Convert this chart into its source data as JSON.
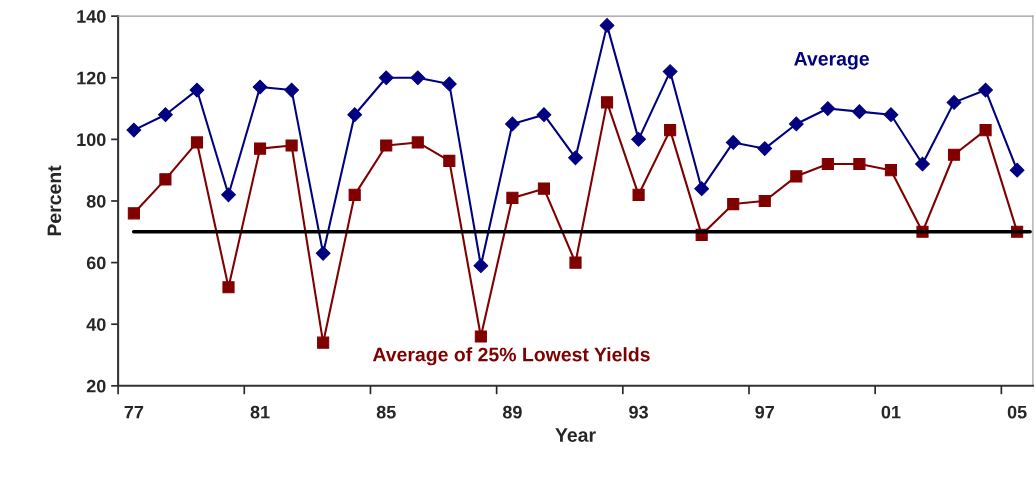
{
  "chart_data": {
    "type": "line",
    "xlabel": "Year",
    "ylabel": "Percent",
    "x": [
      1977,
      1978,
      1979,
      1980,
      1981,
      1982,
      1983,
      1984,
      1985,
      1986,
      1987,
      1988,
      1989,
      1990,
      1991,
      1992,
      1993,
      1994,
      1995,
      1996,
      1997,
      1998,
      1999,
      2000,
      2001,
      2002,
      2003,
      2004,
      2005
    ],
    "series": [
      {
        "name": "Average",
        "color": "#000080",
        "marker": "diamond",
        "values": [
          103,
          108,
          116,
          82,
          117,
          116,
          63,
          108,
          120,
          120,
          118,
          59,
          105,
          108,
          94,
          137,
          100,
          122,
          84,
          99,
          97,
          105,
          110,
          109,
          108,
          92,
          112,
          116,
          90
        ]
      },
      {
        "name": "Average of 25% Lowest Yields",
        "color": "#800000",
        "marker": "square",
        "values": [
          76,
          87,
          99,
          52,
          97,
          98,
          34,
          82,
          98,
          99,
          93,
          36,
          81,
          84,
          60,
          112,
          82,
          103,
          69,
          79,
          80,
          88,
          92,
          92,
          90,
          70,
          95,
          103,
          70
        ]
      }
    ],
    "ref_lines": [
      {
        "axis": "y",
        "value": 70,
        "color": "#000000"
      }
    ],
    "xlim": [
      1976.5,
      2005.5
    ],
    "xticks": [
      {
        "value": 1976.5,
        "label": null
      },
      {
        "value": 1977,
        "label": "77"
      },
      {
        "value": 1980.5,
        "label": null
      },
      {
        "value": 1981,
        "label": "81"
      },
      {
        "value": 1984.5,
        "label": null
      },
      {
        "value": 1985,
        "label": "85"
      },
      {
        "value": 1988.5,
        "label": null
      },
      {
        "value": 1989,
        "label": "89"
      },
      {
        "value": 1992.5,
        "label": null
      },
      {
        "value": 1993,
        "label": "93"
      },
      {
        "value": 1996.5,
        "label": null
      },
      {
        "value": 1997,
        "label": "97"
      },
      {
        "value": 2000.5,
        "label": null
      },
      {
        "value": 2001,
        "label": "01"
      },
      {
        "value": 2004.5,
        "label": null
      },
      {
        "value": 2005,
        "label": "05"
      }
    ],
    "ylim": [
      20,
      140
    ],
    "yticks": [
      20,
      40,
      60,
      80,
      100,
      120,
      140
    ],
    "grid": false,
    "legend": false,
    "line_style": "solid"
  }
}
